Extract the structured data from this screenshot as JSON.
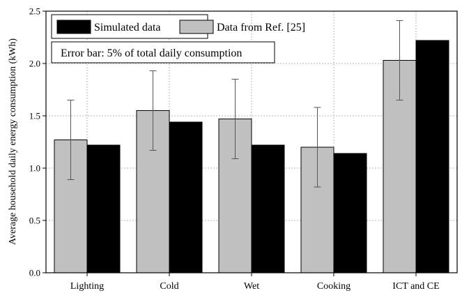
{
  "chart_data": {
    "type": "bar",
    "title": "",
    "xlabel": "",
    "ylabel": "Average household daily energy consumption (kWh)",
    "categories": [
      "Lighting",
      "Cold",
      "Wet",
      "Cooking",
      "ICT and CE"
    ],
    "series": [
      {
        "name": "Data from Ref. [25]",
        "color": "#c0c0c0",
        "values": [
          1.27,
          1.55,
          1.47,
          1.2,
          2.03
        ],
        "error": [
          0.38,
          0.38,
          0.38,
          0.38,
          0.38
        ]
      },
      {
        "name": "Simulated data",
        "color": "#000000",
        "values": [
          1.22,
          1.44,
          1.22,
          1.14,
          2.22
        ]
      }
    ],
    "ylim": [
      0,
      2.5
    ],
    "yticks": [
      "0.0",
      "0.5",
      "1.0",
      "1.5",
      "2.0",
      "2.5"
    ],
    "grid": true,
    "legend_position": "top-left",
    "annotation": "Error bar: 5% of total daily consumption"
  }
}
